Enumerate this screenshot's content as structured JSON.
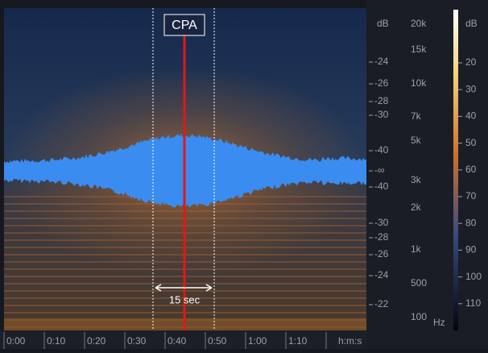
{
  "annotations": {
    "cpa": "CPA",
    "window": "15 sec"
  },
  "time_axis": {
    "labels": [
      "0:00",
      "0:10",
      "0:20",
      "0:30",
      "0:40",
      "0:50",
      "1:00",
      "1:10"
    ],
    "unit": "h:m:s"
  },
  "waveform_scale": {
    "title": "dB",
    "labels": [
      "-24",
      "-26",
      "-28",
      "-30",
      "-40",
      "-∞",
      "-40",
      "-30",
      "-28",
      "-26",
      "-24",
      "-22"
    ]
  },
  "frequency_scale": {
    "labels": [
      "20k",
      "15k",
      "10k",
      "7k",
      "5k",
      "3k",
      "2k",
      "1k",
      "500",
      "100"
    ],
    "unit": "Hz"
  },
  "colorbar": {
    "title": "dB",
    "labels": [
      "20",
      "30",
      "40",
      "50",
      "60",
      "70",
      "80",
      "90",
      "100",
      "110"
    ]
  }
}
